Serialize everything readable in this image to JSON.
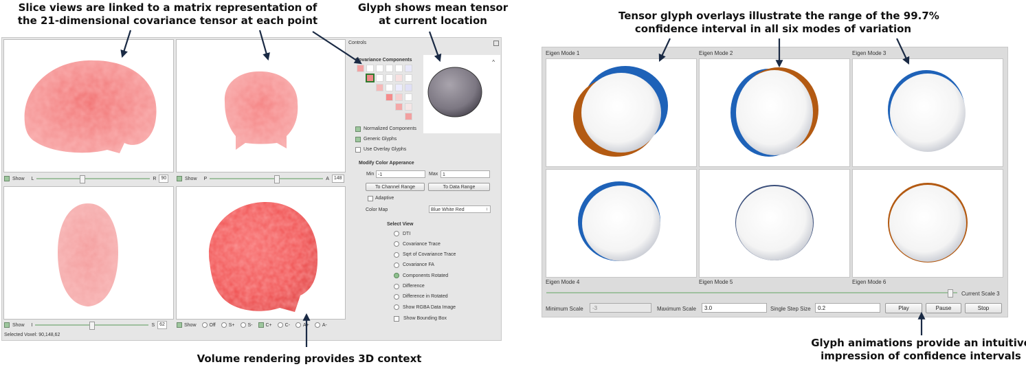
{
  "annotations": {
    "slice_views": [
      "Slice views are linked to a matrix representation of",
      "the 21-dimensional covariance tensor at each point"
    ],
    "glyph_mean": [
      "Glyph shows mean tensor",
      "at current location"
    ],
    "volume_rendering": "Volume rendering provides 3D context",
    "overlay_glyphs": [
      "Tensor glyph overlays illustrate the range of the 99.7%",
      "confidence interval in all six modes of variation"
    ],
    "animations": [
      "Glyph animations provide an intuitive",
      "impression of confidence intervals"
    ]
  },
  "left_app": {
    "views": {
      "sagittal": {
        "show": "Show",
        "left_letter": "L",
        "right_letter": "R",
        "value": "90",
        "slider_fraction": 0.4
      },
      "coronal": {
        "show": "Show",
        "left_letter": "P",
        "right_letter": "A",
        "value": "148",
        "slider_fraction": 0.6
      },
      "axial": {
        "show": "Show",
        "left_letter": "I",
        "right_letter": "S",
        "value": "62",
        "slider_fraction": 0.5
      },
      "volume": {
        "show": "Show",
        "options": [
          "Off",
          "S+",
          "S-",
          "C+",
          "C-",
          "A+",
          "A-"
        ],
        "selected": "C+"
      }
    },
    "status": "Selected Voxel: 90,148,62",
    "controls": {
      "title": "Controls",
      "covariance_title": "Covariance Components",
      "collapse": "^",
      "normalized": "Normalized Components",
      "generic": "Generic Glyphs",
      "overlay": "Use Overlay Glyphs",
      "modify_title": "Modify Color Apperance",
      "min_label": "Min",
      "min_value": "-1",
      "max_label": "Max",
      "max_value": "1",
      "channel_range": "To Channel Range",
      "data_range": "To Data Range",
      "adaptive": "Adaptive",
      "color_map_label": "Color Map",
      "color_map_value": "Blue White Red",
      "select_view_title": "Select View",
      "views": [
        "DTI",
        "Covariance Trace",
        "Sqrt of Covariance Trace",
        "Covariance FA",
        "Components Rotated",
        "Difference",
        "Difference in Rotated",
        "Show RGBA Data Image"
      ],
      "selected_view": "Components Rotated",
      "bounding_box": "Show Bounding Box"
    }
  },
  "right_app": {
    "modes": [
      "Eigen Mode 1",
      "Eigen Mode 2",
      "Eigen Mode 3",
      "Eigen Mode 4",
      "Eigen Mode 5",
      "Eigen Mode 6"
    ],
    "current_scale_label": "Current Scale 3",
    "scale_fraction": 0.99,
    "min_scale_label": "Minimum Scale",
    "min_scale_value": "-3",
    "max_scale_label": "Maximum Scale",
    "max_scale_value": "3.0",
    "step_label": "Single Step Size",
    "step_value": "0.2",
    "play": "Play",
    "pause": "Pause",
    "stop": "Stop"
  },
  "colors": {
    "blue": "#1e62b8",
    "orange": "#b35a12",
    "red": "#f07070",
    "green": "#9ec79e"
  }
}
